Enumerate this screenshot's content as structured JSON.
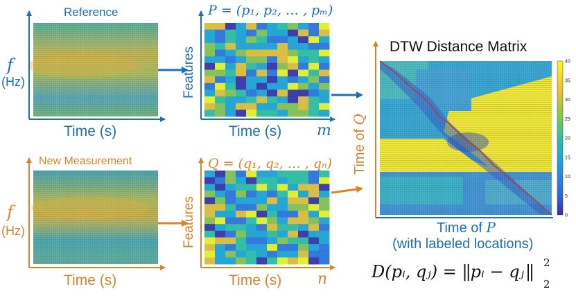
{
  "colors": {
    "reference": "#1f6fb5",
    "measurement": "#d4842b",
    "path": "#a0405a",
    "colormap": [
      "#3b2aa6",
      "#2f6fe0",
      "#1fa3d8",
      "#2ec0a0",
      "#8fc44a",
      "#f0c030",
      "#f9f81c"
    ]
  },
  "reference": {
    "title": "Reference",
    "ylabel_symbol": "f",
    "ylabel_unit": "(Hz)",
    "xlabel": "Time (s)"
  },
  "features_p": {
    "formula": "P = (p₁, p₂, … , pₘ)",
    "ylabel": "Features",
    "xlabel": "Time (s)",
    "axis_symbol": "m"
  },
  "measurement": {
    "title": "New Measurement",
    "ylabel_symbol": "f",
    "ylabel_unit": "(Hz)",
    "xlabel": "Time (s)"
  },
  "features_q": {
    "formula": "Q = (q₁, q₂, … , qₙ)",
    "ylabel": "Features",
    "xlabel": "Time (s)",
    "axis_symbol": "n"
  },
  "dtw": {
    "title": "DTW Distance Matrix",
    "ylabel_text": "Time of ",
    "ylabel_symbol": "Q",
    "xlabel_text": "Time of ",
    "xlabel_symbol": "P",
    "xlabel_note": "(with labeled locations)",
    "colorbar_ticks": [
      "40",
      "35",
      "30",
      "25",
      "20",
      "15",
      "10",
      "5",
      "0"
    ]
  },
  "equation": {
    "lhs": "D(pᵢ, qⱼ) =",
    "norm_body": "pᵢ − qⱼ",
    "superscript": "2",
    "subscript": "2"
  }
}
